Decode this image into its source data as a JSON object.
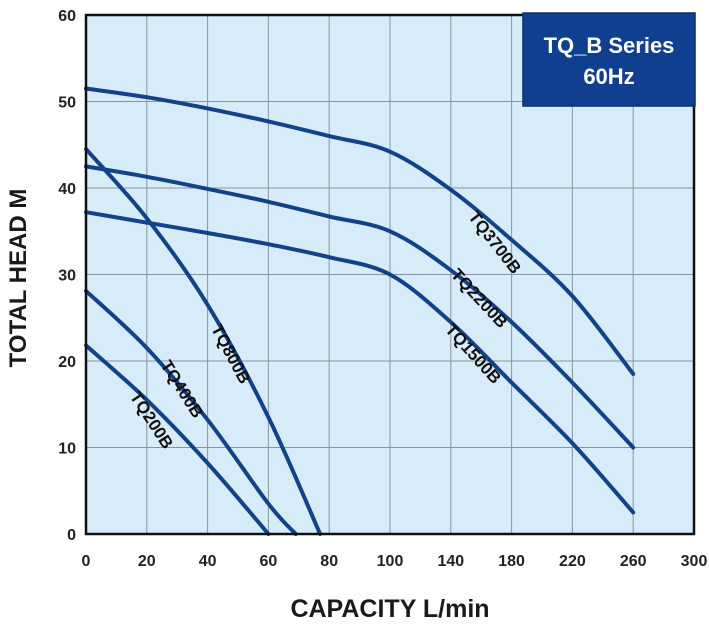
{
  "chart_data": {
    "type": "line",
    "title": "TQ_B Series",
    "subtitle": "60Hz",
    "xlabel": "CAPACITY  L/min",
    "ylabel": "TOTAL HEAD M",
    "x_ticks": [
      "0",
      "20",
      "40",
      "60",
      "80",
      "100",
      "140",
      "180",
      "220",
      "260",
      "300"
    ],
    "y_ticks": [
      "0",
      "10",
      "20",
      "30",
      "40",
      "50",
      "60"
    ],
    "ylim": [
      0,
      60
    ],
    "grid": true,
    "series": [
      {
        "name": "TQ200B",
        "x": [
          "0",
          "20",
          "40",
          "60"
        ],
        "y": [
          21.8,
          15.5,
          8.2,
          0
        ]
      },
      {
        "name": "TQ400B",
        "x": [
          "0",
          "20",
          "40",
          "60",
          "69"
        ],
        "y": [
          28.1,
          21.5,
          13.2,
          3.5,
          0
        ]
      },
      {
        "name": "TQ800B",
        "x": [
          "0",
          "20",
          "40",
          "60",
          "77"
        ],
        "y": [
          44.5,
          36.5,
          26.5,
          13.5,
          0
        ]
      },
      {
        "name": "TQ1500B",
        "x": [
          "0",
          "20",
          "40",
          "60",
          "80",
          "100",
          "140",
          "180",
          "220",
          "260"
        ],
        "y": [
          37.2,
          36.0,
          34.8,
          33.5,
          32.0,
          30.0,
          24.5,
          17.5,
          10.5,
          2.5
        ]
      },
      {
        "name": "TQ2200B",
        "x": [
          "0",
          "20",
          "40",
          "60",
          "80",
          "100",
          "140",
          "180",
          "220",
          "260"
        ],
        "y": [
          42.5,
          41.3,
          39.9,
          38.4,
          36.7,
          35.0,
          30.5,
          24.5,
          17.5,
          10.0
        ]
      },
      {
        "name": "TQ3700B",
        "x": [
          "0",
          "20",
          "40",
          "60",
          "80",
          "100",
          "140",
          "180",
          "220",
          "260"
        ],
        "y": [
          51.5,
          50.5,
          49.2,
          47.7,
          46.0,
          44.2,
          39.8,
          34.0,
          27.5,
          18.5
        ]
      }
    ]
  },
  "colors": {
    "plot_background": "#d8ebf9",
    "curve": "#12428a",
    "badge": "#0f3f8e",
    "grid": "#8a939b"
  }
}
